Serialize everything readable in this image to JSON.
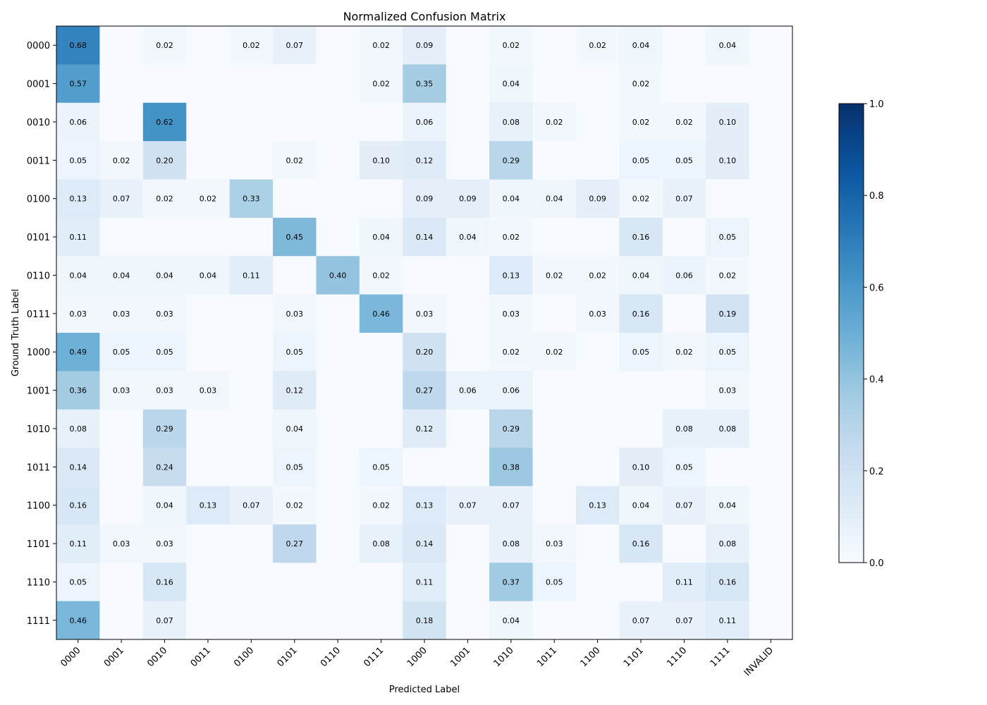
{
  "chart_data": {
    "type": "heatmap",
    "title": "Normalized Confusion Matrix",
    "xlabel": "Predicted Label",
    "ylabel": "Ground Truth Label",
    "x_categories": [
      "0000",
      "0001",
      "0010",
      "0011",
      "0100",
      "0101",
      "0110",
      "0111",
      "1000",
      "1001",
      "1010",
      "1011",
      "1100",
      "1101",
      "1110",
      "1111",
      "INVALID"
    ],
    "y_categories": [
      "0000",
      "0001",
      "0010",
      "0011",
      "0100",
      "0101",
      "0110",
      "0111",
      "1000",
      "1001",
      "1010",
      "1011",
      "1100",
      "1101",
      "1110",
      "1111"
    ],
    "values": [
      [
        0.68,
        0,
        0.02,
        0,
        0.02,
        0.07,
        0,
        0.02,
        0.09,
        0,
        0.02,
        0,
        0.02,
        0.04,
        0,
        0.04,
        0
      ],
      [
        0.57,
        0,
        0,
        0,
        0,
        0,
        0,
        0.02,
        0.35,
        0,
        0.04,
        0,
        0,
        0.02,
        0,
        0,
        0
      ],
      [
        0.06,
        0,
        0.62,
        0,
        0,
        0,
        0,
        0,
        0.06,
        0,
        0.08,
        0.02,
        0,
        0.02,
        0.02,
        0.1,
        0
      ],
      [
        0.05,
        0.02,
        0.2,
        0,
        0,
        0.02,
        0,
        0.1,
        0.12,
        0,
        0.29,
        0,
        0,
        0.05,
        0.05,
        0.1,
        0
      ],
      [
        0.13,
        0.07,
        0.02,
        0.02,
        0.33,
        0,
        0,
        0,
        0.09,
        0.09,
        0.04,
        0.04,
        0.09,
        0.02,
        0.07,
        0,
        0
      ],
      [
        0.11,
        0,
        0,
        0,
        0,
        0.45,
        0,
        0.04,
        0.14,
        0.04,
        0.02,
        0,
        0,
        0.16,
        0,
        0.05,
        0
      ],
      [
        0.04,
        0.04,
        0.04,
        0.04,
        0.11,
        0,
        0.4,
        0.02,
        0,
        0,
        0.13,
        0.02,
        0.02,
        0.04,
        0.06,
        0.02,
        0
      ],
      [
        0.03,
        0.03,
        0.03,
        0,
        0,
        0.03,
        0,
        0.46,
        0.03,
        0,
        0.03,
        0,
        0.03,
        0.16,
        0,
        0.19,
        0
      ],
      [
        0.49,
        0.05,
        0.05,
        0,
        0,
        0.05,
        0,
        0,
        0.2,
        0,
        0.02,
        0.02,
        0,
        0.05,
        0.02,
        0.05,
        0
      ],
      [
        0.36,
        0.03,
        0.03,
        0.03,
        0,
        0.12,
        0,
        0,
        0.27,
        0.06,
        0.06,
        0,
        0,
        0,
        0,
        0.03,
        0
      ],
      [
        0.08,
        0,
        0.29,
        0,
        0,
        0.04,
        0,
        0,
        0.12,
        0,
        0.29,
        0,
        0,
        0,
        0.08,
        0.08,
        0
      ],
      [
        0.14,
        0,
        0.24,
        0,
        0,
        0.05,
        0,
        0.05,
        0,
        0,
        0.38,
        0,
        0,
        0.1,
        0.05,
        0,
        0
      ],
      [
        0.16,
        0,
        0.04,
        0.13,
        0.07,
        0.02,
        0,
        0.02,
        0.13,
        0.07,
        0.07,
        0,
        0.13,
        0.04,
        0.07,
        0.04,
        0
      ],
      [
        0.11,
        0.03,
        0.03,
        0,
        0,
        0.27,
        0,
        0.08,
        0.14,
        0,
        0.08,
        0.03,
        0,
        0.16,
        0,
        0.08,
        0
      ],
      [
        0.05,
        0,
        0.16,
        0,
        0,
        0,
        0,
        0,
        0.11,
        0,
        0.37,
        0.05,
        0,
        0,
        0.11,
        0.16,
        0
      ],
      [
        0.46,
        0,
        0.07,
        0,
        0,
        0,
        0,
        0,
        0.18,
        0,
        0.04,
        0,
        0,
        0.07,
        0.07,
        0.11,
        0
      ]
    ],
    "value_range": [
      0,
      1
    ],
    "colormap": "Blues",
    "colorbar_ticks": [
      "0.0",
      "0.2",
      "0.4",
      "0.6",
      "0.8",
      "1.0"
    ],
    "colorbar_tick_values": [
      0,
      0.2,
      0.4,
      0.6,
      0.8,
      1.0
    ],
    "number_format": "2 decimals, zero cells unlabeled",
    "grid": false,
    "colorbar_placement": "right"
  }
}
